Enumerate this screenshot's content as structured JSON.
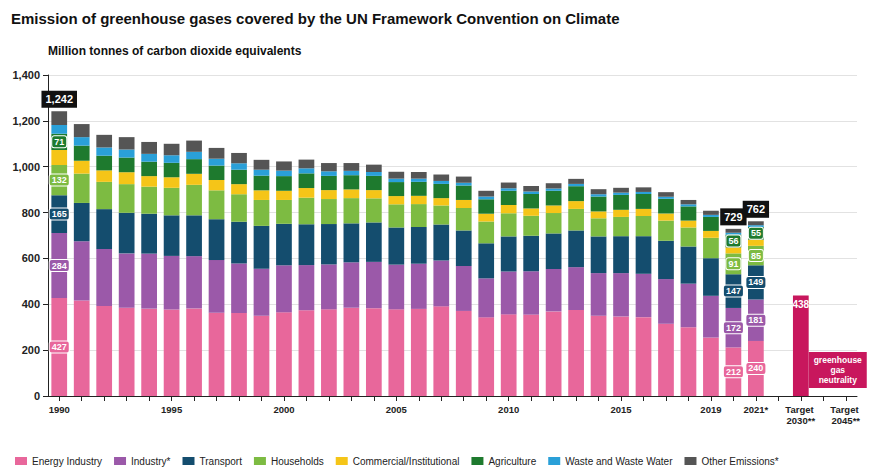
{
  "chart_data": {
    "type": "bar",
    "title": "Emission of greenhouse gases covered by the UN Framework Convention on Climate",
    "y_label": "Million tonnes of carbon dioxide equivalents",
    "stacked": true,
    "grid": true,
    "legend": "bottom",
    "categories": [
      "1990",
      null,
      null,
      null,
      null,
      "1995",
      null,
      null,
      null,
      null,
      "2000",
      null,
      null,
      null,
      null,
      "2005",
      null,
      null,
      null,
      null,
      "2010",
      null,
      null,
      null,
      null,
      "2015",
      null,
      null,
      null,
      "2019",
      null,
      "2021*",
      null,
      "Target 2030**",
      null,
      "Target 2045**"
    ],
    "ylim": [
      0,
      1400
    ],
    "yticks": [
      0,
      200,
      400,
      600,
      800,
      {
        "value": 1000,
        "label": "1,000"
      },
      {
        "value": 1200,
        "label": "1,200"
      },
      {
        "value": 1400,
        "label": "1,400"
      }
    ],
    "series": [
      {
        "name": "Energy Industry",
        "color": "#e8679b",
        "values": [
          427,
          417,
          393,
          385,
          381,
          377,
          382,
          363,
          362,
          350,
          365,
          374,
          378,
          385,
          383,
          378,
          380,
          391,
          371,
          343,
          356,
          355,
          369,
          375,
          350,
          347,
          344,
          315,
          300,
          255,
          212,
          240,
          null,
          null,
          null,
          null
        ],
        "value_labels": [
          "427",
          null,
          null,
          null,
          null,
          null,
          null,
          null,
          null,
          null,
          null,
          null,
          null,
          null,
          null,
          null,
          null,
          null,
          null,
          null,
          null,
          null,
          null,
          null,
          null,
          null,
          null,
          null,
          null,
          null,
          "212",
          "240",
          null,
          null,
          null,
          null
        ]
      },
      {
        "name": "Industry*",
        "color": "#9b59a9",
        "values": [
          284,
          258,
          248,
          237,
          240,
          234,
          228,
          230,
          216,
          205,
          205,
          197,
          196,
          198,
          202,
          195,
          197,
          200,
          196,
          170,
          187,
          189,
          185,
          187,
          186,
          189,
          189,
          195,
          190,
          182,
          172,
          181,
          null,
          null,
          null,
          null
        ],
        "value_labels": [
          "284",
          null,
          null,
          null,
          null,
          null,
          null,
          null,
          null,
          null,
          null,
          null,
          null,
          null,
          null,
          null,
          null,
          null,
          null,
          null,
          null,
          null,
          null,
          null,
          null,
          null,
          null,
          null,
          null,
          null,
          "172",
          "181",
          null,
          null,
          null,
          null
        ]
      },
      {
        "name": "Transport",
        "color": "#144d6e",
        "values": [
          165,
          167,
          174,
          177,
          174,
          177,
          178,
          178,
          182,
          187,
          181,
          178,
          176,
          170,
          172,
          162,
          160,
          157,
          155,
          153,
          153,
          155,
          155,
          160,
          160,
          161,
          164,
          167,
          162,
          164,
          147,
          149,
          null,
          null,
          null,
          null
        ],
        "value_labels": [
          "165",
          null,
          null,
          null,
          null,
          null,
          null,
          null,
          null,
          null,
          null,
          null,
          null,
          null,
          null,
          null,
          null,
          null,
          null,
          null,
          null,
          null,
          null,
          null,
          null,
          null,
          null,
          null,
          null,
          null,
          "147",
          "149",
          null,
          null,
          null,
          null
        ]
      },
      {
        "name": "Households",
        "color": "#7dbb42",
        "values": [
          132,
          128,
          119,
          125,
          118,
          120,
          133,
          126,
          120,
          113,
          104,
          116,
          109,
          110,
          105,
          101,
          100,
          83,
          98,
          95,
          101,
          87,
          89,
          94,
          79,
          84,
          88,
          88,
          83,
          89,
          91,
          85,
          null,
          null,
          null,
          null
        ],
        "value_labels": [
          "132",
          null,
          null,
          null,
          null,
          null,
          null,
          null,
          null,
          null,
          null,
          null,
          null,
          null,
          null,
          null,
          null,
          null,
          null,
          null,
          null,
          null,
          null,
          null,
          null,
          null,
          null,
          null,
          null,
          null,
          "91",
          "85",
          null,
          null,
          null,
          null
        ]
      },
      {
        "name": "Commercial/Institutional",
        "color": "#f5c518",
        "values": [
          65,
          56,
          50,
          52,
          46,
          46,
          48,
          45,
          44,
          42,
          40,
          42,
          39,
          38,
          36,
          36,
          36,
          32,
          35,
          34,
          36,
          32,
          33,
          34,
          30,
          31,
          31,
          31,
          30,
          30,
          26,
          27,
          null,
          null,
          null,
          null
        ]
      },
      {
        "name": "Agriculture",
        "color": "#1e7a2e",
        "values": [
          71,
          66,
          64,
          64,
          63,
          63,
          64,
          63,
          63,
          64,
          64,
          64,
          62,
          62,
          62,
          61,
          61,
          62,
          63,
          63,
          62,
          63,
          64,
          65,
          65,
          65,
          65,
          64,
          62,
          61,
          56,
          55,
          null,
          null,
          null,
          null
        ],
        "value_labels": [
          "71",
          null,
          null,
          null,
          null,
          null,
          null,
          null,
          null,
          null,
          null,
          null,
          null,
          null,
          null,
          null,
          null,
          null,
          null,
          null,
          null,
          null,
          null,
          null,
          null,
          null,
          null,
          null,
          null,
          null,
          "56",
          "55",
          null,
          null,
          null,
          null
        ]
      },
      {
        "name": "Waste and Waste Water",
        "color": "#2aa0d8",
        "values": [
          38,
          37,
          36,
          35,
          34,
          33,
          32,
          30,
          28,
          26,
          24,
          22,
          20,
          19,
          17,
          15,
          14,
          13,
          12,
          12,
          11,
          11,
          10,
          10,
          10,
          10,
          9,
          9,
          9,
          9,
          8,
          8,
          null,
          null,
          null,
          null
        ]
      },
      {
        "name": "Other Emissions*",
        "color": "#555555",
        "values": [
          60,
          57,
          55,
          54,
          52,
          50,
          49,
          47,
          45,
          43,
          40,
          38,
          36,
          34,
          32,
          30,
          29,
          28,
          27,
          25,
          25,
          24,
          23,
          22,
          22,
          21,
          20,
          20,
          19,
          18,
          17,
          17,
          null,
          null,
          null,
          null
        ]
      }
    ],
    "total_labels": [
      "1,242",
      null,
      null,
      null,
      null,
      null,
      null,
      null,
      null,
      null,
      null,
      null,
      null,
      null,
      null,
      null,
      null,
      null,
      null,
      null,
      null,
      null,
      null,
      null,
      null,
      null,
      null,
      null,
      null,
      null,
      "729",
      "762",
      null,
      null,
      null,
      null
    ],
    "target": {
      "color": "#c8175d",
      "data_labels": true,
      "values": [
        null,
        null,
        null,
        null,
        null,
        null,
        null,
        null,
        null,
        null,
        null,
        null,
        null,
        null,
        null,
        null,
        null,
        null,
        null,
        null,
        null,
        null,
        null,
        null,
        null,
        null,
        null,
        null,
        null,
        null,
        null,
        null,
        null,
        438,
        null,
        null
      ]
    },
    "annotations": [
      {
        "category": "Target 2045**",
        "text": "greenhouse gas neutrality"
      }
    ]
  }
}
